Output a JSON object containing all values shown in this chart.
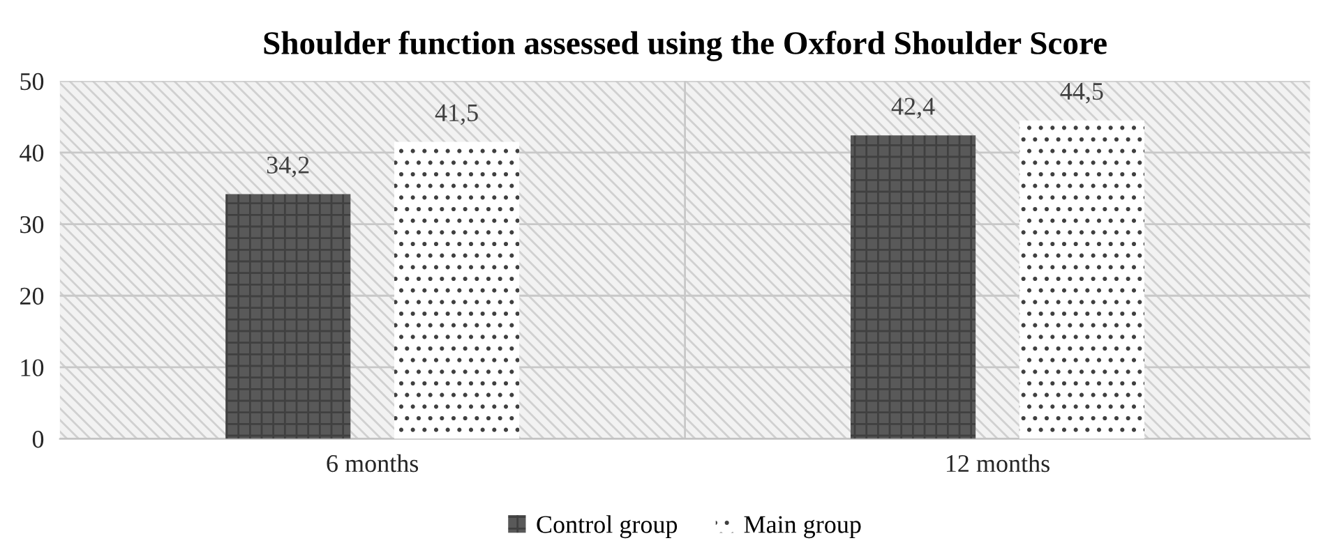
{
  "chart_data": {
    "type": "bar",
    "title": "Shoulder function assessed using the Oxford Shoulder Score",
    "categories": [
      "6 months",
      "12 months"
    ],
    "series": [
      {
        "name": "Control group",
        "color": "#595959",
        "values": [
          34.2,
          42.4
        ],
        "value_labels": [
          "34,2",
          "42,4"
        ]
      },
      {
        "name": "Main group",
        "color": "#ffffff",
        "values": [
          41.5,
          44.5
        ],
        "value_labels": [
          "41,5",
          "44,5"
        ]
      }
    ],
    "ylim": [
      0,
      50
    ],
    "yticks": [
      0,
      10,
      20,
      30,
      40,
      50
    ],
    "grid": "y",
    "legend": "bottom"
  }
}
